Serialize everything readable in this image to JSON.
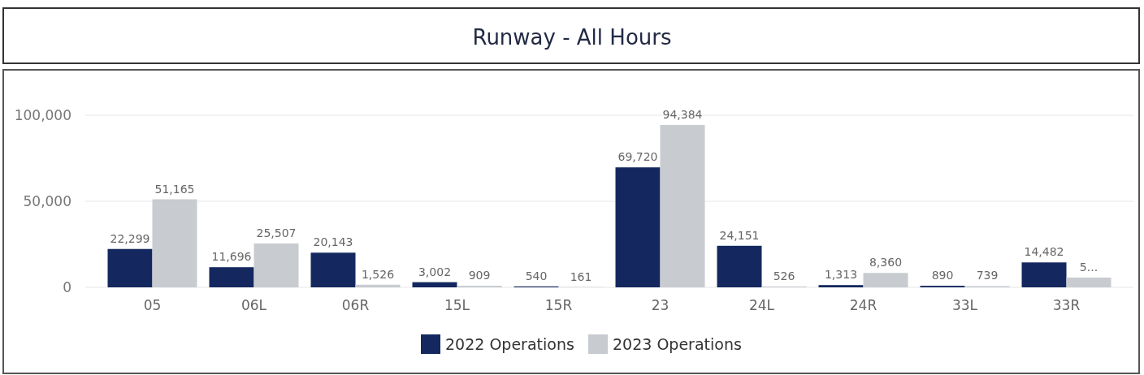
{
  "chart_data": {
    "type": "bar",
    "title": "Runway - All Hours",
    "categories": [
      "05",
      "06L",
      "06R",
      "15L",
      "15R",
      "23",
      "24L",
      "24R",
      "33L",
      "33R"
    ],
    "series": [
      {
        "name": "2022 Operations",
        "color": "#14285f",
        "values": [
          22299,
          11696,
          20143,
          3002,
          540,
          69720,
          24151,
          1313,
          890,
          14482
        ],
        "value_labels": [
          "22,299",
          "11,696",
          "20,143",
          "3,002",
          "540",
          "69,720",
          "24,151",
          "1,313",
          "890",
          "14,482"
        ]
      },
      {
        "name": "2023 Operations",
        "color": "#c8cbcf",
        "values": [
          51165,
          25507,
          1526,
          909,
          161,
          94384,
          526,
          8360,
          739,
          5700
        ],
        "value_labels": [
          "51,165",
          "25,507",
          "1,526",
          "909",
          "161",
          "94,384",
          "526",
          "8,360",
          "739",
          "5..."
        ]
      }
    ],
    "ylim": [
      0,
      100000
    ],
    "yticks": [
      0,
      {
        "value": 50000,
        "label": "50,000"
      },
      {
        "value": 100000,
        "label": "100,000"
      }
    ],
    "grid": "y",
    "legend": "bottom"
  }
}
